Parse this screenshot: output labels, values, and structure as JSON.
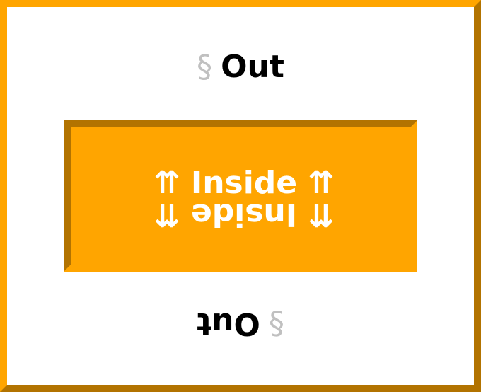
{
  "outer": {
    "section_mark": "§",
    "label": "Out"
  },
  "inner": {
    "arrow": "⇈",
    "label": "Inside"
  },
  "colors": {
    "orange": "#ffa500",
    "orange_dark": "#b27300",
    "section_gray": "#c0c0c0",
    "text_dark": "#000000",
    "text_light": "#ffffff"
  }
}
